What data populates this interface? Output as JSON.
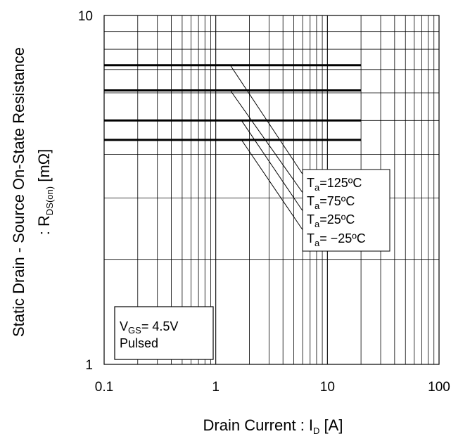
{
  "chart_data": {
    "type": "line",
    "x_scale": "log",
    "y_scale": "log",
    "xlim": [
      0.1,
      100
    ],
    "ylim": [
      1,
      10
    ],
    "x_ticks": [
      "0.1",
      "1",
      "10",
      "100"
    ],
    "y_ticks": [
      "1",
      "10"
    ],
    "xlabel": {
      "main": "Drain Current : I",
      "sub": "D",
      "unit": " [A]"
    },
    "ylabel": {
      "line1": "Static Drain - Source On-State Resistance",
      "line2_pre": ": R",
      "line2_sub": "DS(on)",
      "line2_unit": " [mΩ]"
    },
    "grid": true,
    "x_range_of_lines": [
      0.1,
      20
    ],
    "series": [
      {
        "name_main": "T",
        "name_sub": "a",
        "name_rest": "=125ºC",
        "values": [
          7.2,
          7.2
        ]
      },
      {
        "name_main": "T",
        "name_sub": "a",
        "name_rest": "=75ºC",
        "values": [
          6.1,
          6.1
        ]
      },
      {
        "name_main": "T",
        "name_sub": "a",
        "name_rest": "=25ºC",
        "values": [
          5.0,
          5.0
        ]
      },
      {
        "name_main": "T",
        "name_sub": "a",
        "name_rest": "= −25ºC",
        "values": [
          4.4,
          4.4
        ]
      }
    ],
    "leader_anchor_x": [
      1.35,
      1.35,
      1.7,
      1.7
    ],
    "conditions": {
      "line1_main": "V",
      "line1_sub": "GS",
      "line1_rest": "= 4.5V",
      "line2": "Pulsed"
    }
  }
}
